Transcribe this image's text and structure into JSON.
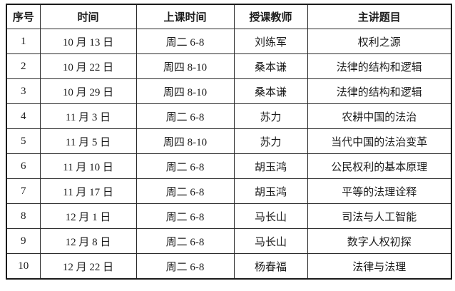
{
  "table": {
    "headers": {
      "no": "序号",
      "date": "时间",
      "class_time": "上课时间",
      "teacher": "授课教师",
      "topic": "主讲题目"
    },
    "rows": [
      [
        "1",
        "10 月 13 日",
        "周二 6-8",
        "刘练军",
        "权利之源"
      ],
      [
        "2",
        "10 月 22 日",
        "周四 8-10",
        "桑本谦",
        "法律的结构和逻辑"
      ],
      [
        "3",
        "10 月 29 日",
        "周四 8-10",
        "桑本谦",
        "法律的结构和逻辑"
      ],
      [
        "4",
        "11 月 3 日",
        "周二 6-8",
        "苏力",
        "农耕中国的法治"
      ],
      [
        "5",
        "11 月 5 日",
        "周四 8-10",
        "苏力",
        "当代中国的法治变革"
      ],
      [
        "6",
        "11 月 10 日",
        "周二 6-8",
        "胡玉鸿",
        "公民权利的基本原理"
      ],
      [
        "7",
        "11 月 17 日",
        "周二 6-8",
        "胡玉鸿",
        "平等的法理诠释"
      ],
      [
        "8",
        "12 月 1 日",
        "周二 6-8",
        "马长山",
        "司法与人工智能"
      ],
      [
        "9",
        "12 月 8 日",
        "周二 6-8",
        "马长山",
        "数字人权初探"
      ],
      [
        "10",
        "12 月 22 日",
        "周二 6-8",
        "杨春福",
        "法律与法理"
      ]
    ]
  },
  "colors": {
    "border_outer": "#1a1a1a",
    "border_inner": "#2a2a2a",
    "text": "#1c1c1c",
    "background": "#ffffff"
  }
}
